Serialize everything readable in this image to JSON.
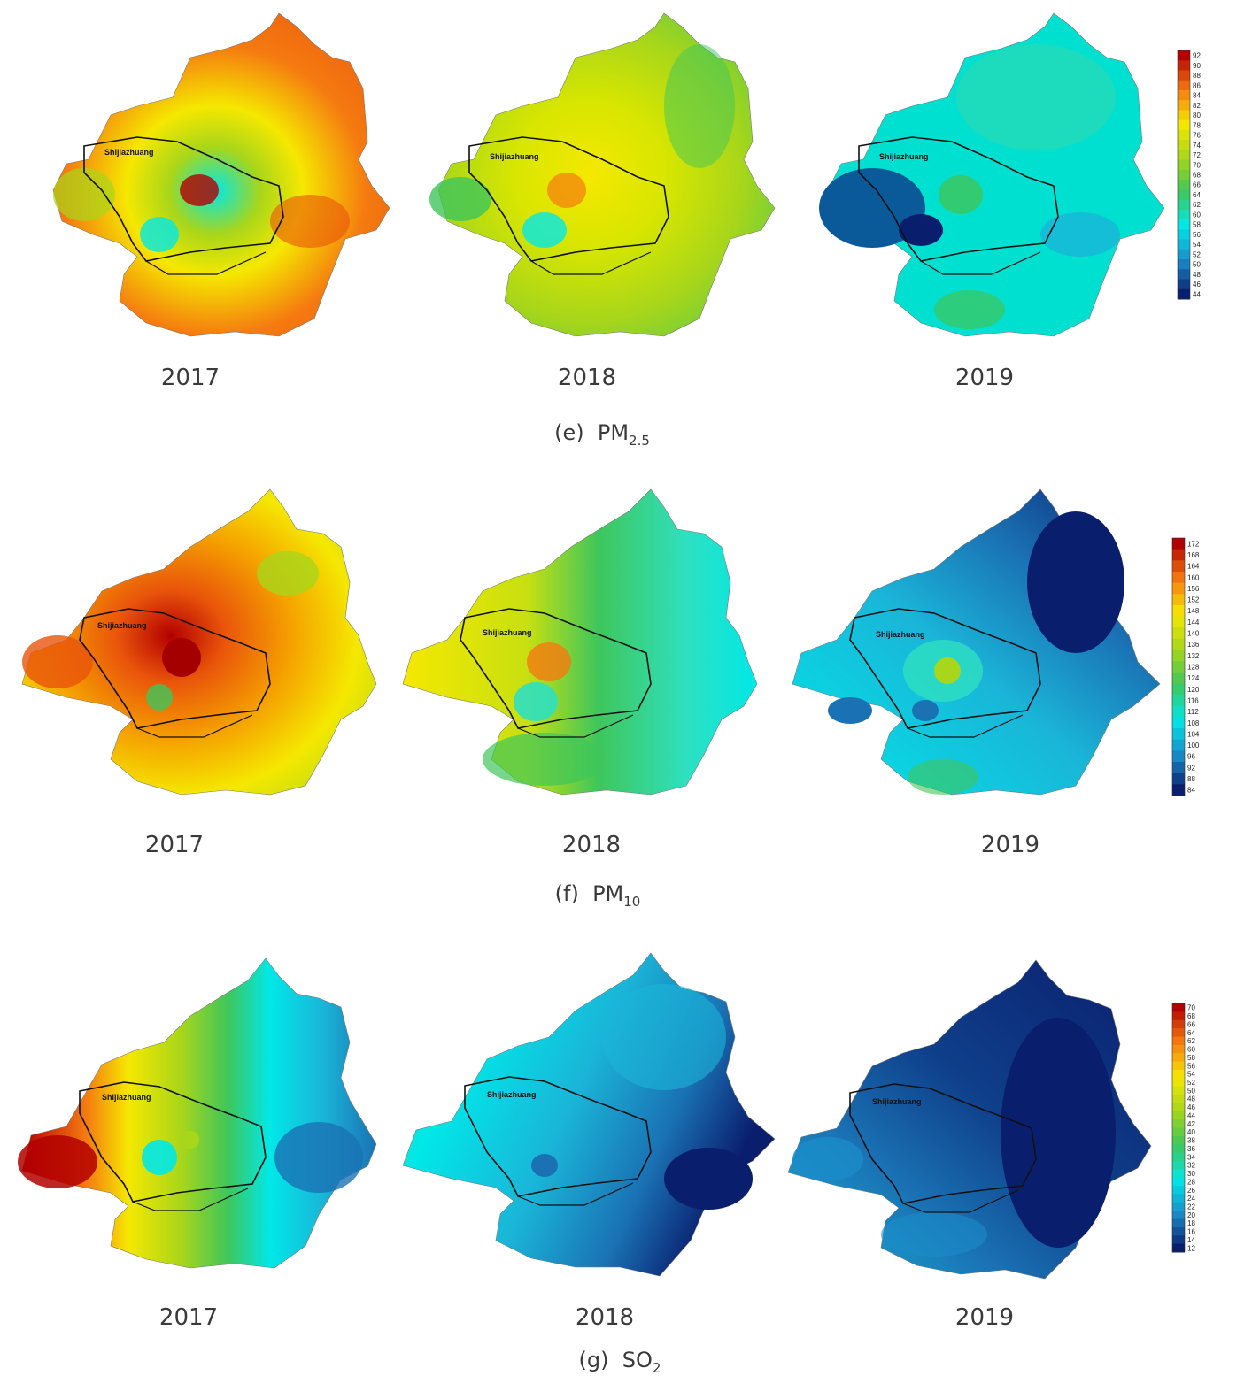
{
  "city_label": "Shijiazhuang",
  "panels": [
    {
      "caption_prefix": "(e)",
      "caption_base": "PM",
      "caption_sub": "2.5",
      "years": [
        "2017",
        "2018",
        "2019"
      ],
      "colorbar_ticks": [
        "92",
        "90",
        "88",
        "86",
        "84",
        "82",
        "80",
        "78",
        "76",
        "74",
        "72",
        "70",
        "68",
        "66",
        "64",
        "62",
        "60",
        "58",
        "56",
        "54",
        "52",
        "50",
        "48",
        "46",
        "44"
      ],
      "colorbar_range": [
        44,
        92
      ]
    },
    {
      "caption_prefix": "(f)",
      "caption_base": "PM",
      "caption_sub": "10",
      "years": [
        "2017",
        "2018",
        "2019"
      ],
      "colorbar_ticks": [
        "172",
        "168",
        "164",
        "160",
        "156",
        "152",
        "148",
        "144",
        "140",
        "136",
        "132",
        "128",
        "124",
        "120",
        "116",
        "112",
        "108",
        "104",
        "100",
        "96",
        "92",
        "88",
        "84"
      ],
      "colorbar_range": [
        84,
        172
      ]
    },
    {
      "caption_prefix": "(g)",
      "caption_base": "SO",
      "caption_sub": "2",
      "years": [
        "2017",
        "2018",
        "2019"
      ],
      "colorbar_ticks": [
        "70",
        "68",
        "66",
        "64",
        "62",
        "60",
        "58",
        "56",
        "54",
        "52",
        "50",
        "48",
        "46",
        "44",
        "42",
        "40",
        "38",
        "36",
        "34",
        "32",
        "30",
        "28",
        "26",
        "24",
        "22",
        "20",
        "18",
        "16",
        "14",
        "12"
      ],
      "colorbar_range": [
        12,
        70
      ]
    }
  ],
  "colors": {
    "red": "#b30000",
    "orange": "#f57a10",
    "yellow": "#f5e800",
    "lime": "#a8d61a",
    "green": "#3fc65a",
    "cyan": "#00e8e8",
    "blue": "#1a8cc8",
    "navy": "#0a1e6e"
  }
}
